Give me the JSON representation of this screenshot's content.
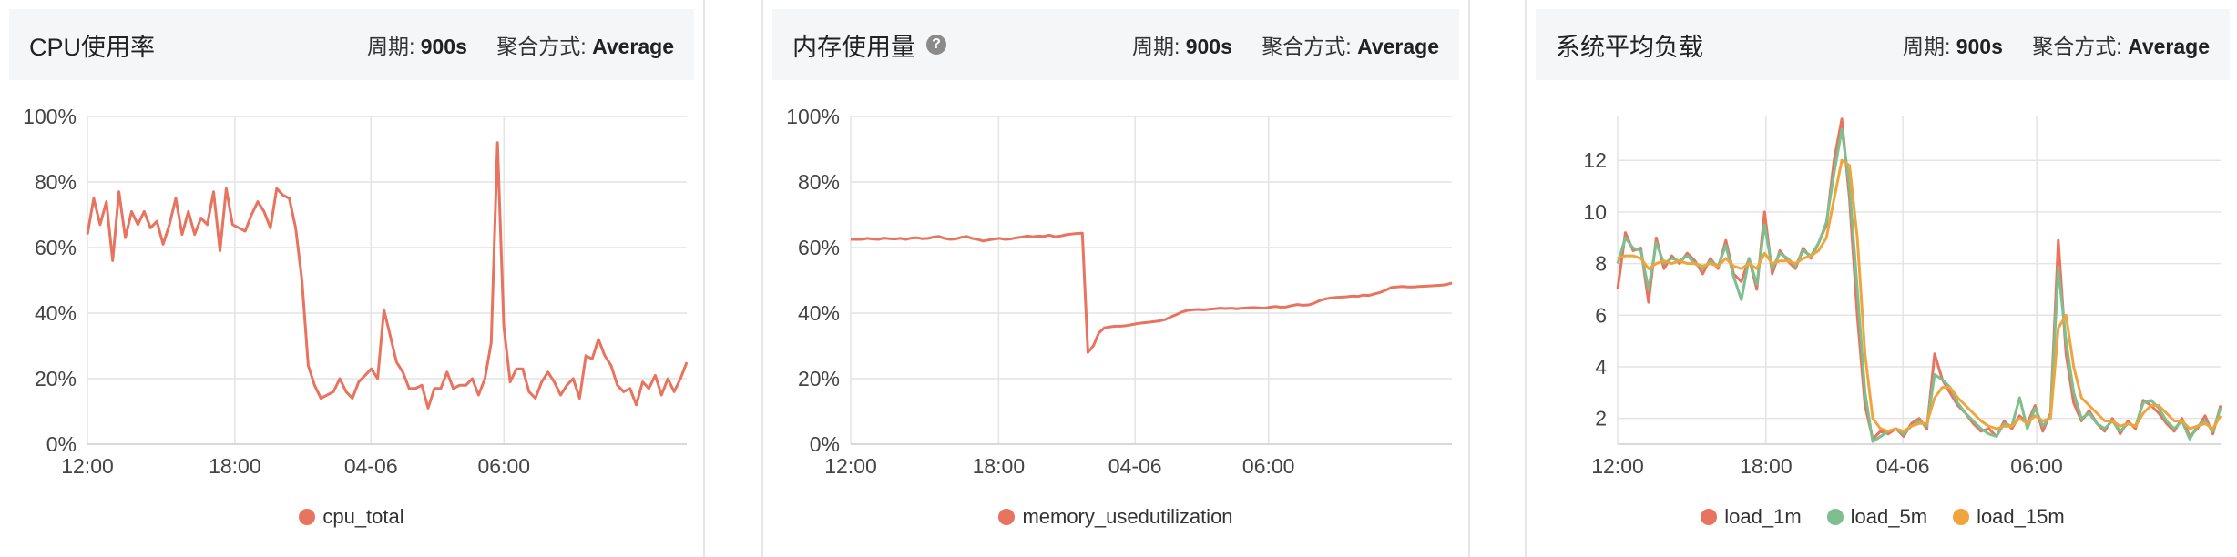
{
  "colors": {
    "series_red": "#e8735f",
    "series_green": "#7dbf8e",
    "series_orange": "#f2a43c"
  },
  "panels": [
    {
      "title": "CPU使用率",
      "period_label": "周期:",
      "period_value": "900s",
      "agg_label": "聚合方式:",
      "agg_value": "Average"
    },
    {
      "title": "内存使用量",
      "help_icon": "help-circle-icon",
      "help_glyph": "?",
      "period_label": "周期:",
      "period_value": "900s",
      "agg_label": "聚合方式:",
      "agg_value": "Average"
    },
    {
      "title": "系统平均负载",
      "period_label": "周期:",
      "period_value": "900s",
      "agg_label": "聚合方式:",
      "agg_value": "Average"
    }
  ],
  "chart_data": [
    {
      "type": "line",
      "x_ticks": [
        "12:00",
        "18:00",
        "04-06",
        "06:00"
      ],
      "y_ticks": [
        "0%",
        "20%",
        "40%",
        "60%",
        "80%",
        "100%"
      ],
      "ylim": [
        0,
        100
      ],
      "grid": true,
      "legend_position": "bottom",
      "series": [
        {
          "name": "cpu_total",
          "color": "#e8735f",
          "values": [
            64,
            75,
            67,
            74,
            56,
            77,
            63,
            71,
            67,
            71,
            66,
            68,
            61,
            67,
            75,
            64,
            71,
            64,
            69,
            67,
            77,
            59,
            78,
            67,
            66,
            65,
            70,
            74,
            71,
            66,
            78,
            76,
            75,
            66,
            50,
            24,
            18,
            14,
            15,
            16,
            20,
            16,
            14,
            19,
            21,
            23,
            20,
            41,
            33,
            25,
            22,
            17,
            17,
            18,
            11,
            17,
            17,
            22,
            17,
            18,
            18,
            20,
            15,
            20,
            31,
            92,
            36,
            19,
            23,
            23,
            16,
            14,
            19,
            22,
            19,
            15,
            18,
            20,
            14,
            27,
            26,
            32,
            27,
            24,
            18,
            16,
            17,
            12,
            19,
            17,
            21,
            15,
            20,
            16,
            20,
            25
          ]
        }
      ]
    },
    {
      "type": "line",
      "x_ticks": [
        "12:00",
        "18:00",
        "04-06",
        "06:00"
      ],
      "y_ticks": [
        "0%",
        "20%",
        "40%",
        "60%",
        "80%",
        "100%"
      ],
      "ylim": [
        0,
        100
      ],
      "grid": true,
      "legend_position": "bottom",
      "series": [
        {
          "name": "memory_usedutilization",
          "color": "#e8735f",
          "values": [
            62.5,
            62.5,
            62.5,
            62.8,
            62.6,
            62.5,
            62.9,
            62.7,
            62.6,
            62.8,
            62.5,
            62.9,
            63.0,
            62.7,
            62.8,
            63.2,
            63.4,
            62.8,
            62.5,
            62.6,
            63.1,
            63.4,
            62.8,
            62.5,
            62.0,
            62.3,
            62.6,
            62.8,
            62.5,
            62.6,
            63.0,
            63.2,
            63.5,
            63.3,
            63.5,
            63.4,
            63.8,
            63.3,
            63.5,
            63.9,
            64.1,
            64.3,
            64.4,
            28.0,
            30.0,
            34.0,
            35.5,
            35.8,
            36.0,
            36.0,
            36.2,
            36.5,
            36.8,
            37.0,
            37.2,
            37.4,
            37.6,
            38.0,
            38.8,
            39.5,
            40.3,
            40.8,
            41.0,
            41.1,
            41.0,
            41.2,
            41.3,
            41.5,
            41.4,
            41.5,
            41.3,
            41.5,
            41.6,
            41.7,
            41.6,
            41.5,
            41.8,
            42.0,
            41.8,
            41.9,
            42.3,
            42.6,
            42.4,
            42.5,
            43.0,
            43.8,
            44.3,
            44.6,
            44.8,
            44.9,
            45.0,
            45.2,
            45.1,
            45.5,
            45.4,
            45.9,
            46.3,
            47.0,
            47.8,
            48.0,
            48.1,
            48.0,
            48.0,
            48.1,
            48.2,
            48.3,
            48.4,
            48.5,
            48.7,
            49.2
          ]
        }
      ]
    },
    {
      "type": "line",
      "x_ticks": [
        "12:00",
        "18:00",
        "04-06",
        "06:00"
      ],
      "y_ticks": [
        "2",
        "4",
        "6",
        "8",
        "10",
        "12"
      ],
      "ylim": [
        1,
        13.7
      ],
      "grid": true,
      "legend_position": "bottom",
      "series": [
        {
          "name": "load_1m",
          "color": "#e8735f",
          "values": [
            7.0,
            9.2,
            8.5,
            8.6,
            6.5,
            9.0,
            7.8,
            8.3,
            8.0,
            8.4,
            8.1,
            7.6,
            8.2,
            7.8,
            8.9,
            7.6,
            7.3,
            8.2,
            7.0,
            10.0,
            7.6,
            8.5,
            8.1,
            7.8,
            8.6,
            8.2,
            8.8,
            9.5,
            12.0,
            13.6,
            10.5,
            6.0,
            2.5,
            1.2,
            1.5,
            1.4,
            1.6,
            1.3,
            1.8,
            2.0,
            1.6,
            4.5,
            3.5,
            3.0,
            2.5,
            2.2,
            1.8,
            1.5,
            1.6,
            1.3,
            1.9,
            1.6,
            2.1,
            1.8,
            2.5,
            1.5,
            2.2,
            8.9,
            4.5,
            2.6,
            1.9,
            2.3,
            1.8,
            1.5,
            2.0,
            1.4,
            1.9,
            1.6,
            2.7,
            2.5,
            2.2,
            1.8,
            1.5,
            2.0,
            1.3,
            1.6,
            2.1,
            1.4,
            2.5
          ]
        },
        {
          "name": "load_5m",
          "color": "#7dbf8e",
          "values": [
            8.0,
            9.0,
            8.6,
            8.5,
            7.0,
            8.8,
            8.0,
            8.2,
            8.1,
            8.3,
            8.0,
            7.8,
            8.1,
            7.9,
            8.7,
            7.5,
            6.6,
            8.2,
            7.2,
            9.5,
            7.8,
            8.4,
            8.2,
            7.9,
            8.5,
            8.3,
            8.8,
            9.6,
            11.5,
            13.2,
            11.0,
            7.0,
            3.0,
            1.1,
            1.3,
            1.5,
            1.6,
            1.4,
            1.7,
            1.9,
            1.7,
            3.7,
            3.5,
            3.2,
            2.6,
            2.2,
            1.9,
            1.6,
            1.4,
            1.3,
            1.8,
            1.7,
            2.8,
            1.6,
            2.4,
            1.7,
            2.1,
            7.8,
            5.0,
            3.0,
            2.0,
            2.2,
            1.8,
            1.6,
            1.9,
            1.5,
            1.8,
            1.7,
            2.6,
            2.7,
            2.4,
            1.9,
            1.6,
            1.9,
            1.2,
            1.7,
            1.9,
            1.5,
            2.4
          ]
        },
        {
          "name": "load_15m",
          "color": "#f2a43c",
          "values": [
            8.2,
            8.3,
            8.3,
            8.2,
            7.8,
            8.0,
            8.1,
            8.0,
            8.1,
            8.0,
            8.0,
            7.9,
            8.0,
            7.9,
            8.2,
            7.9,
            7.8,
            8.0,
            7.8,
            8.4,
            8.0,
            8.1,
            8.1,
            8.0,
            8.2,
            8.3,
            8.5,
            9.0,
            10.5,
            12.0,
            11.8,
            9.0,
            4.5,
            2.0,
            1.6,
            1.5,
            1.6,
            1.5,
            1.7,
            1.8,
            1.8,
            2.8,
            3.2,
            3.2,
            2.8,
            2.5,
            2.2,
            1.9,
            1.7,
            1.6,
            1.7,
            1.7,
            2.0,
            1.8,
            2.1,
            1.9,
            2.0,
            5.5,
            6.0,
            4.0,
            2.8,
            2.5,
            2.2,
            1.9,
            1.9,
            1.7,
            1.8,
            1.7,
            2.2,
            2.5,
            2.5,
            2.2,
            1.9,
            1.9,
            1.6,
            1.7,
            1.8,
            1.6,
            2.1
          ]
        }
      ]
    }
  ]
}
